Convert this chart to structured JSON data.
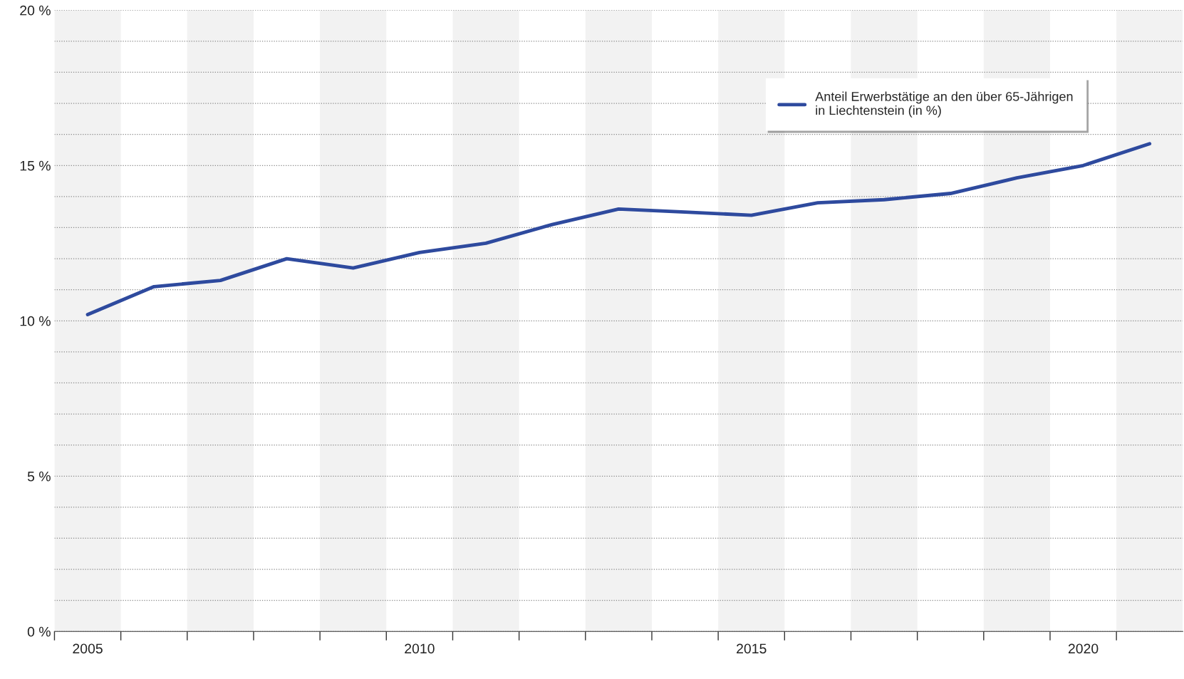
{
  "chart_data": {
    "type": "line",
    "x": [
      2005,
      2006,
      2007,
      2008,
      2009,
      2010,
      2011,
      2012,
      2013,
      2014,
      2015,
      2016,
      2017,
      2018,
      2019,
      2020,
      2021
    ],
    "series": [
      {
        "name": "Anteil Erwerbstätige an den über 65-Jährigen\nin Liechtenstein (in %)",
        "color": "#2e4a9e",
        "values": [
          10.2,
          11.1,
          11.3,
          12.0,
          11.7,
          12.2,
          12.5,
          13.1,
          13.6,
          13.5,
          13.4,
          13.8,
          13.9,
          14.1,
          14.6,
          15.0,
          15.7
        ]
      }
    ],
    "xlim": [
      2004.5,
      2021.5
    ],
    "xticks": [
      {
        "value": 2005,
        "label": "2005"
      },
      {
        "value": 2010,
        "label": "2010"
      },
      {
        "value": 2015,
        "label": "2015"
      },
      {
        "value": 2020,
        "label": "2020"
      },
      {
        "value": 2004.5,
        "label": null
      },
      {
        "value": 2005.5,
        "label": null
      },
      {
        "value": 2006.5,
        "label": null
      },
      {
        "value": 2007.5,
        "label": null
      },
      {
        "value": 2008.5,
        "label": null
      },
      {
        "value": 2009.5,
        "label": null
      },
      {
        "value": 2010.5,
        "label": null
      },
      {
        "value": 2011.5,
        "label": null
      },
      {
        "value": 2012.5,
        "label": null
      },
      {
        "value": 2013.5,
        "label": null
      },
      {
        "value": 2014.5,
        "label": null
      },
      {
        "value": 2015.5,
        "label": null
      },
      {
        "value": 2016.5,
        "label": null
      },
      {
        "value": 2017.5,
        "label": null
      },
      {
        "value": 2018.5,
        "label": null
      },
      {
        "value": 2019.5,
        "label": null
      },
      {
        "value": 2020.5,
        "label": null
      }
    ],
    "ylim": [
      0,
      20
    ],
    "yticks": [
      {
        "value": 0,
        "label": "0 %"
      },
      {
        "value": 5,
        "label": "5 %"
      },
      {
        "value": 10,
        "label": "10 %"
      },
      {
        "value": 15,
        "label": "15 %"
      },
      {
        "value": 20,
        "label": "20 %"
      },
      {
        "value": 1,
        "label": null
      },
      {
        "value": 2,
        "label": null
      },
      {
        "value": 3,
        "label": null
      },
      {
        "value": 4,
        "label": null
      },
      {
        "value": 6,
        "label": null
      },
      {
        "value": 7,
        "label": null
      },
      {
        "value": 8,
        "label": null
      },
      {
        "value": 9,
        "label": null
      },
      {
        "value": 11,
        "label": null
      },
      {
        "value": 12,
        "label": null
      },
      {
        "value": 13,
        "label": null
      },
      {
        "value": 14,
        "label": null
      },
      {
        "value": 16,
        "label": null
      },
      {
        "value": 17,
        "label": null
      },
      {
        "value": 18,
        "label": null
      },
      {
        "value": 19,
        "label": null
      }
    ],
    "bands": [
      {
        "axis": "x",
        "from": 2004.5,
        "to": 2005.5,
        "color": "#f2f2f2"
      },
      {
        "axis": "x",
        "from": 2006.5,
        "to": 2007.5,
        "color": "#f2f2f2"
      },
      {
        "axis": "x",
        "from": 2008.5,
        "to": 2009.5,
        "color": "#f2f2f2"
      },
      {
        "axis": "x",
        "from": 2010.5,
        "to": 2011.5,
        "color": "#f2f2f2"
      },
      {
        "axis": "x",
        "from": 2012.5,
        "to": 2013.5,
        "color": "#f2f2f2"
      },
      {
        "axis": "x",
        "from": 2014.5,
        "to": 2015.5,
        "color": "#f2f2f2"
      },
      {
        "axis": "x",
        "from": 2016.5,
        "to": 2017.5,
        "color": "#f2f2f2"
      },
      {
        "axis": "x",
        "from": 2018.5,
        "to": 2019.5,
        "color": "#f2f2f2"
      },
      {
        "axis": "x",
        "from": 2020.5,
        "to": 2021.5,
        "color": "#f2f2f2"
      }
    ],
    "grid": "y",
    "legend": "top right",
    "marker": "none",
    "line_style": "solid"
  }
}
